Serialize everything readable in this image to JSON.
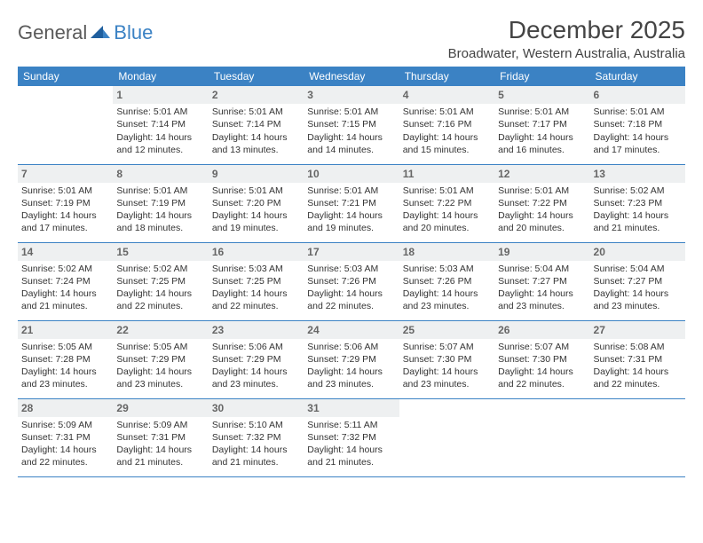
{
  "logo": {
    "general": "General",
    "blue": "Blue"
  },
  "title": "December 2025",
  "location": "Broadwater, Western Australia, Australia",
  "header_color": "#3b82c4",
  "row_border_color": "#3b82c4",
  "daynum_bg": "#eef0f1",
  "text_color": "#333333",
  "columns": [
    "Sunday",
    "Monday",
    "Tuesday",
    "Wednesday",
    "Thursday",
    "Friday",
    "Saturday"
  ],
  "weeks": [
    [
      null,
      {
        "n": "1",
        "sr": "Sunrise: 5:01 AM",
        "ss": "Sunset: 7:14 PM",
        "d1": "Daylight: 14 hours",
        "d2": "and 12 minutes."
      },
      {
        "n": "2",
        "sr": "Sunrise: 5:01 AM",
        "ss": "Sunset: 7:14 PM",
        "d1": "Daylight: 14 hours",
        "d2": "and 13 minutes."
      },
      {
        "n": "3",
        "sr": "Sunrise: 5:01 AM",
        "ss": "Sunset: 7:15 PM",
        "d1": "Daylight: 14 hours",
        "d2": "and 14 minutes."
      },
      {
        "n": "4",
        "sr": "Sunrise: 5:01 AM",
        "ss": "Sunset: 7:16 PM",
        "d1": "Daylight: 14 hours",
        "d2": "and 15 minutes."
      },
      {
        "n": "5",
        "sr": "Sunrise: 5:01 AM",
        "ss": "Sunset: 7:17 PM",
        "d1": "Daylight: 14 hours",
        "d2": "and 16 minutes."
      },
      {
        "n": "6",
        "sr": "Sunrise: 5:01 AM",
        "ss": "Sunset: 7:18 PM",
        "d1": "Daylight: 14 hours",
        "d2": "and 17 minutes."
      }
    ],
    [
      {
        "n": "7",
        "sr": "Sunrise: 5:01 AM",
        "ss": "Sunset: 7:19 PM",
        "d1": "Daylight: 14 hours",
        "d2": "and 17 minutes."
      },
      {
        "n": "8",
        "sr": "Sunrise: 5:01 AM",
        "ss": "Sunset: 7:19 PM",
        "d1": "Daylight: 14 hours",
        "d2": "and 18 minutes."
      },
      {
        "n": "9",
        "sr": "Sunrise: 5:01 AM",
        "ss": "Sunset: 7:20 PM",
        "d1": "Daylight: 14 hours",
        "d2": "and 19 minutes."
      },
      {
        "n": "10",
        "sr": "Sunrise: 5:01 AM",
        "ss": "Sunset: 7:21 PM",
        "d1": "Daylight: 14 hours",
        "d2": "and 19 minutes."
      },
      {
        "n": "11",
        "sr": "Sunrise: 5:01 AM",
        "ss": "Sunset: 7:22 PM",
        "d1": "Daylight: 14 hours",
        "d2": "and 20 minutes."
      },
      {
        "n": "12",
        "sr": "Sunrise: 5:01 AM",
        "ss": "Sunset: 7:22 PM",
        "d1": "Daylight: 14 hours",
        "d2": "and 20 minutes."
      },
      {
        "n": "13",
        "sr": "Sunrise: 5:02 AM",
        "ss": "Sunset: 7:23 PM",
        "d1": "Daylight: 14 hours",
        "d2": "and 21 minutes."
      }
    ],
    [
      {
        "n": "14",
        "sr": "Sunrise: 5:02 AM",
        "ss": "Sunset: 7:24 PM",
        "d1": "Daylight: 14 hours",
        "d2": "and 21 minutes."
      },
      {
        "n": "15",
        "sr": "Sunrise: 5:02 AM",
        "ss": "Sunset: 7:25 PM",
        "d1": "Daylight: 14 hours",
        "d2": "and 22 minutes."
      },
      {
        "n": "16",
        "sr": "Sunrise: 5:03 AM",
        "ss": "Sunset: 7:25 PM",
        "d1": "Daylight: 14 hours",
        "d2": "and 22 minutes."
      },
      {
        "n": "17",
        "sr": "Sunrise: 5:03 AM",
        "ss": "Sunset: 7:26 PM",
        "d1": "Daylight: 14 hours",
        "d2": "and 22 minutes."
      },
      {
        "n": "18",
        "sr": "Sunrise: 5:03 AM",
        "ss": "Sunset: 7:26 PM",
        "d1": "Daylight: 14 hours",
        "d2": "and 23 minutes."
      },
      {
        "n": "19",
        "sr": "Sunrise: 5:04 AM",
        "ss": "Sunset: 7:27 PM",
        "d1": "Daylight: 14 hours",
        "d2": "and 23 minutes."
      },
      {
        "n": "20",
        "sr": "Sunrise: 5:04 AM",
        "ss": "Sunset: 7:27 PM",
        "d1": "Daylight: 14 hours",
        "d2": "and 23 minutes."
      }
    ],
    [
      {
        "n": "21",
        "sr": "Sunrise: 5:05 AM",
        "ss": "Sunset: 7:28 PM",
        "d1": "Daylight: 14 hours",
        "d2": "and 23 minutes."
      },
      {
        "n": "22",
        "sr": "Sunrise: 5:05 AM",
        "ss": "Sunset: 7:29 PM",
        "d1": "Daylight: 14 hours",
        "d2": "and 23 minutes."
      },
      {
        "n": "23",
        "sr": "Sunrise: 5:06 AM",
        "ss": "Sunset: 7:29 PM",
        "d1": "Daylight: 14 hours",
        "d2": "and 23 minutes."
      },
      {
        "n": "24",
        "sr": "Sunrise: 5:06 AM",
        "ss": "Sunset: 7:29 PM",
        "d1": "Daylight: 14 hours",
        "d2": "and 23 minutes."
      },
      {
        "n": "25",
        "sr": "Sunrise: 5:07 AM",
        "ss": "Sunset: 7:30 PM",
        "d1": "Daylight: 14 hours",
        "d2": "and 23 minutes."
      },
      {
        "n": "26",
        "sr": "Sunrise: 5:07 AM",
        "ss": "Sunset: 7:30 PM",
        "d1": "Daylight: 14 hours",
        "d2": "and 22 minutes."
      },
      {
        "n": "27",
        "sr": "Sunrise: 5:08 AM",
        "ss": "Sunset: 7:31 PM",
        "d1": "Daylight: 14 hours",
        "d2": "and 22 minutes."
      }
    ],
    [
      {
        "n": "28",
        "sr": "Sunrise: 5:09 AM",
        "ss": "Sunset: 7:31 PM",
        "d1": "Daylight: 14 hours",
        "d2": "and 22 minutes."
      },
      {
        "n": "29",
        "sr": "Sunrise: 5:09 AM",
        "ss": "Sunset: 7:31 PM",
        "d1": "Daylight: 14 hours",
        "d2": "and 21 minutes."
      },
      {
        "n": "30",
        "sr": "Sunrise: 5:10 AM",
        "ss": "Sunset: 7:32 PM",
        "d1": "Daylight: 14 hours",
        "d2": "and 21 minutes."
      },
      {
        "n": "31",
        "sr": "Sunrise: 5:11 AM",
        "ss": "Sunset: 7:32 PM",
        "d1": "Daylight: 14 hours",
        "d2": "and 21 minutes."
      },
      null,
      null,
      null
    ]
  ]
}
